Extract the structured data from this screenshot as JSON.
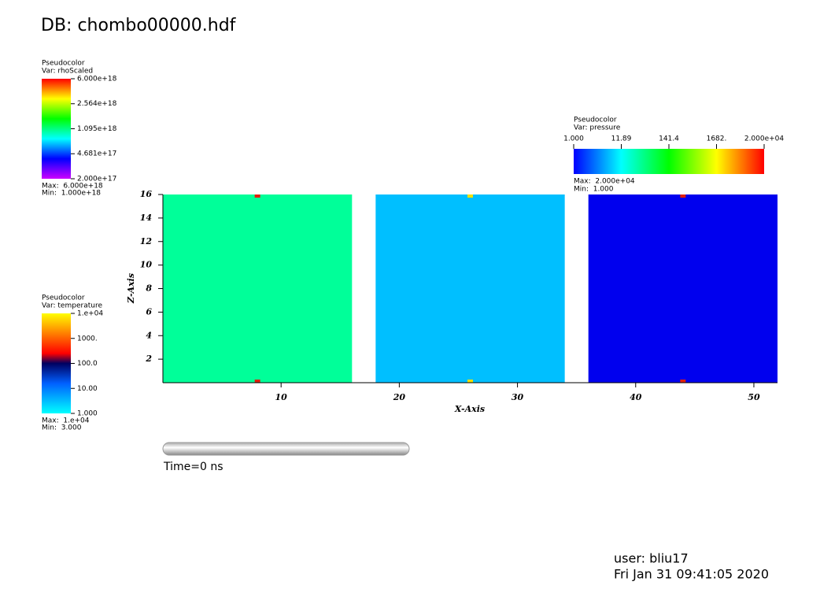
{
  "chart_data": {
    "type": "pseudocolor",
    "title": "DB: chombo00000.hdf",
    "x_label": "X-Axis",
    "y_label": "Z-Axis",
    "xlim": [
      0,
      52
    ],
    "ylim": [
      0,
      16
    ],
    "xticks": [
      10,
      20,
      30,
      40,
      50
    ],
    "yticks": [
      2,
      4,
      6,
      8,
      10,
      12,
      14,
      16
    ],
    "regions": [
      {
        "x": [
          0,
          16
        ],
        "y": [
          0,
          16
        ],
        "color": "#00ff99"
      },
      {
        "x": [
          18,
          34
        ],
        "y": [
          0,
          16
        ],
        "color": "#00bfff"
      },
      {
        "x": [
          36,
          52
        ],
        "y": [
          0,
          16
        ],
        "color": "#0000ee"
      }
    ],
    "markers": [
      {
        "x": 8,
        "y": 16,
        "color": "#e0200e"
      },
      {
        "x": 8,
        "y": 0,
        "color": "#e0200e"
      },
      {
        "x": 26,
        "y": 16,
        "color": "#f0e000"
      },
      {
        "x": 26,
        "y": 0,
        "color": "#f0e000"
      },
      {
        "x": 44,
        "y": 16,
        "color": "#e0200e"
      },
      {
        "x": 44,
        "y": 0,
        "color": "#e0200e"
      }
    ],
    "colorbars": [
      {
        "title": "Pseudocolor",
        "var": "Var: rhoScaled",
        "log": true,
        "ticks": [
          {
            "value": 2e+17,
            "label": "2.000e+17"
          },
          {
            "value": 4.681e+17,
            "label": "4.681e+17"
          },
          {
            "value": 1.095e+18,
            "label": "1.095e+18"
          },
          {
            "value": 2.564e+18,
            "label": "2.564e+18"
          },
          {
            "value": 6e+18,
            "label": "6.000e+18"
          }
        ],
        "max": "Max:  6.000e+18",
        "min": "Min:  1.000e+18"
      },
      {
        "title": "Pseudocolor",
        "var": "Var: temperature",
        "log": true,
        "ticks": [
          {
            "value": 1,
            "label": "1.000"
          },
          {
            "value": 10,
            "label": "10.00"
          },
          {
            "value": 100,
            "label": "100.0"
          },
          {
            "value": 1000,
            "label": "1000."
          },
          {
            "value": 10000,
            "label": "1.e+04"
          }
        ],
        "max": "Max:  1.e+04",
        "min": "Min:  3.000"
      },
      {
        "title": "Pseudocolor",
        "var": "Var: pressure",
        "log": true,
        "ticks": [
          {
            "value": 1,
            "label": "1.000"
          },
          11.89,
          141.4,
          {
            "value": 1682,
            "label": "1682."
          },
          {
            "value": 20000,
            "label": "2.000e+04"
          }
        ],
        "max": "Max:  2.000e+04",
        "min": "Min:  1.000"
      }
    ],
    "time_label": "Time=0 ns",
    "user": "user: bliu17",
    "date": "Fri Jan 31 09:41:05 2020"
  }
}
